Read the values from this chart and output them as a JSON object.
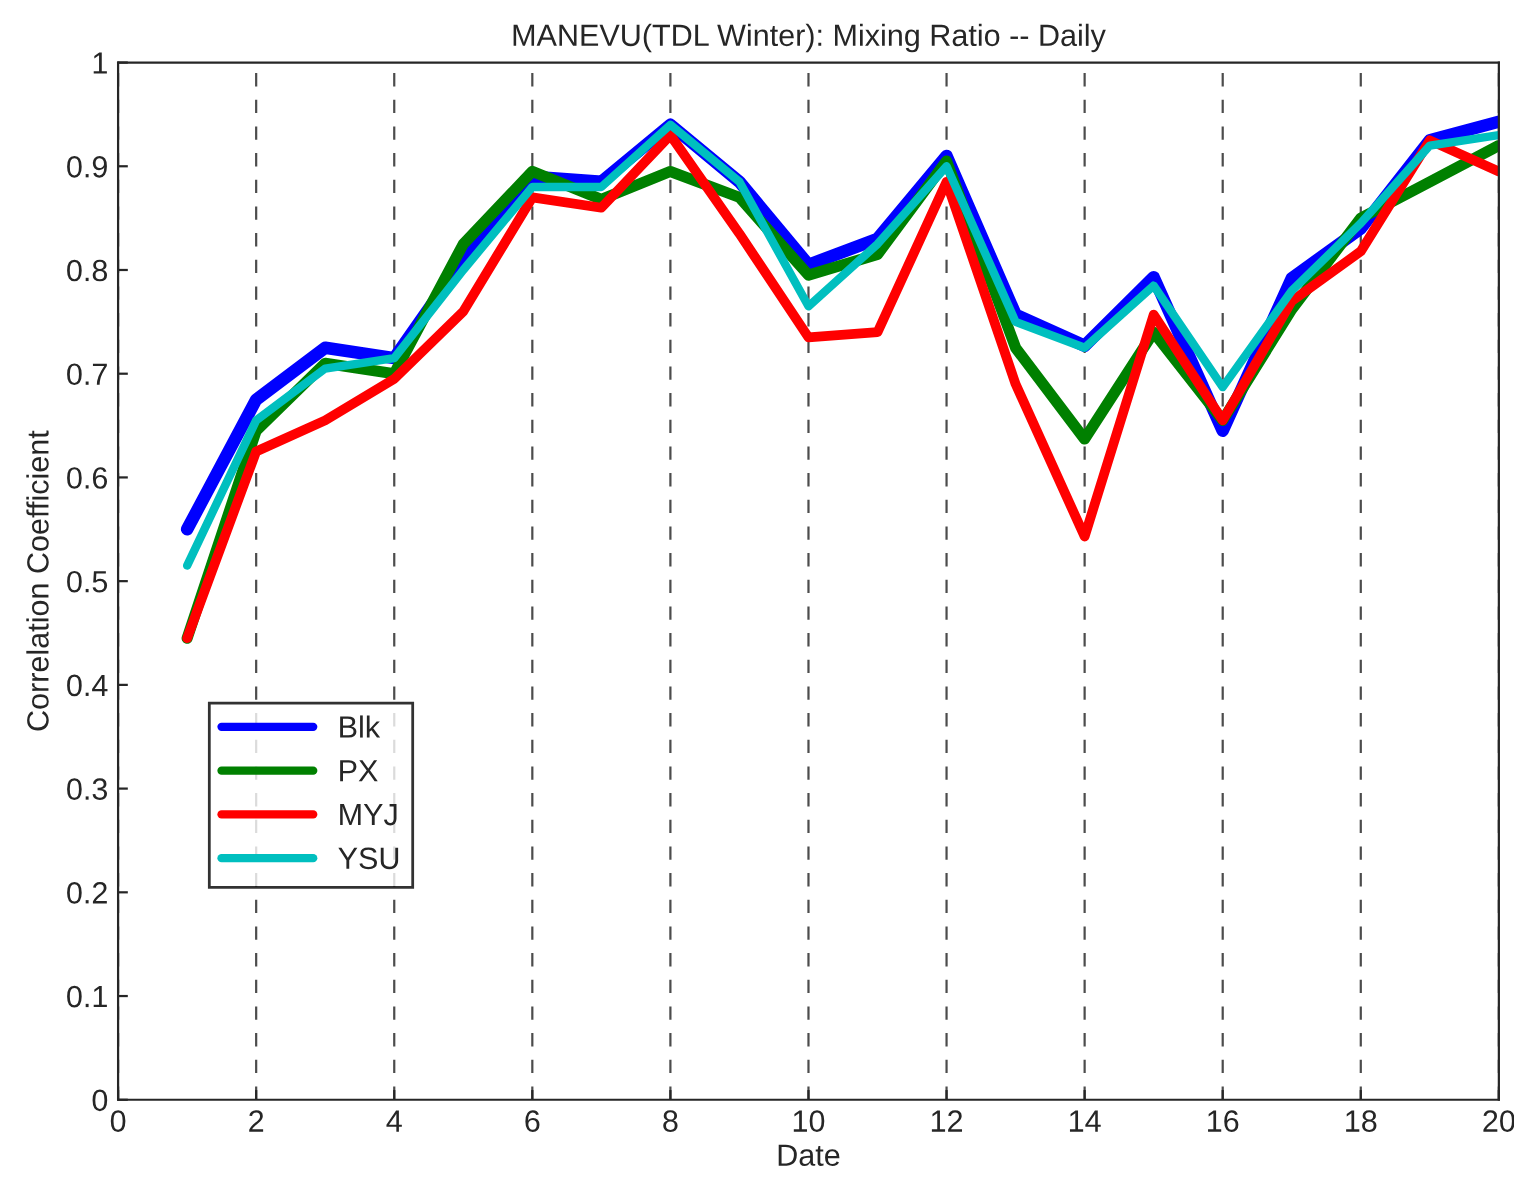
{
  "chart_data": {
    "type": "line",
    "title": "MANEVU(TDL Winter): Mixing Ratio -- Daily",
    "xlabel": "Date",
    "ylabel": "Correlation Coefficient",
    "x": [
      1,
      2,
      3,
      4,
      5,
      6,
      7,
      8,
      9,
      10,
      11,
      12,
      13,
      14,
      15,
      16,
      17,
      18,
      19,
      20
    ],
    "series": [
      {
        "name": "Blk",
        "color": "#0000ff",
        "values": [
          0.55,
          0.675,
          0.725,
          0.715,
          0.81,
          0.89,
          0.885,
          0.94,
          0.885,
          0.805,
          0.83,
          0.91,
          0.757,
          0.727,
          0.793,
          0.645,
          0.792,
          0.84,
          0.925,
          0.943
        ]
      },
      {
        "name": "PX",
        "color": "#008000",
        "values": [
          0.445,
          0.645,
          0.71,
          0.7,
          0.825,
          0.895,
          0.868,
          0.895,
          0.87,
          0.795,
          0.815,
          0.905,
          0.725,
          0.637,
          0.74,
          0.655,
          0.762,
          0.85,
          0.885,
          0.92
        ]
      },
      {
        "name": "MYJ",
        "color": "#ff0000",
        "values": [
          0.445,
          0.625,
          0.655,
          0.695,
          0.76,
          0.87,
          0.86,
          0.93,
          0.835,
          0.735,
          0.74,
          0.885,
          0.69,
          0.543,
          0.757,
          0.655,
          0.77,
          0.818,
          0.925,
          0.895
        ]
      },
      {
        "name": "YSU",
        "color": "#00bfbf",
        "values": [
          0.515,
          0.655,
          0.705,
          0.715,
          0.8,
          0.88,
          0.88,
          0.94,
          0.885,
          0.765,
          0.825,
          0.9,
          0.75,
          0.725,
          0.785,
          0.687,
          0.78,
          0.845,
          0.92,
          0.93
        ]
      }
    ],
    "xlim": [
      0,
      20
    ],
    "xticks": [
      0,
      2,
      4,
      6,
      8,
      10,
      12,
      14,
      16,
      18,
      20
    ],
    "ylim": [
      0,
      1
    ],
    "yticks": [
      0,
      {
        "value": 0.1,
        "label": "0.1"
      },
      {
        "value": 0.2,
        "label": "0.2"
      },
      {
        "value": 0.3,
        "label": "0.3"
      },
      {
        "value": 0.4,
        "label": "0.4"
      },
      {
        "value": 0.5,
        "label": "0.5"
      },
      {
        "value": 0.6,
        "label": "0.6"
      },
      {
        "value": 0.7,
        "label": "0.7"
      },
      {
        "value": 0.8,
        "label": "0.8"
      },
      {
        "value": 0.9,
        "label": "0.9"
      },
      1
    ],
    "grid": "x",
    "legend": "bottom left",
    "line_style": "solid",
    "marker": "none"
  }
}
